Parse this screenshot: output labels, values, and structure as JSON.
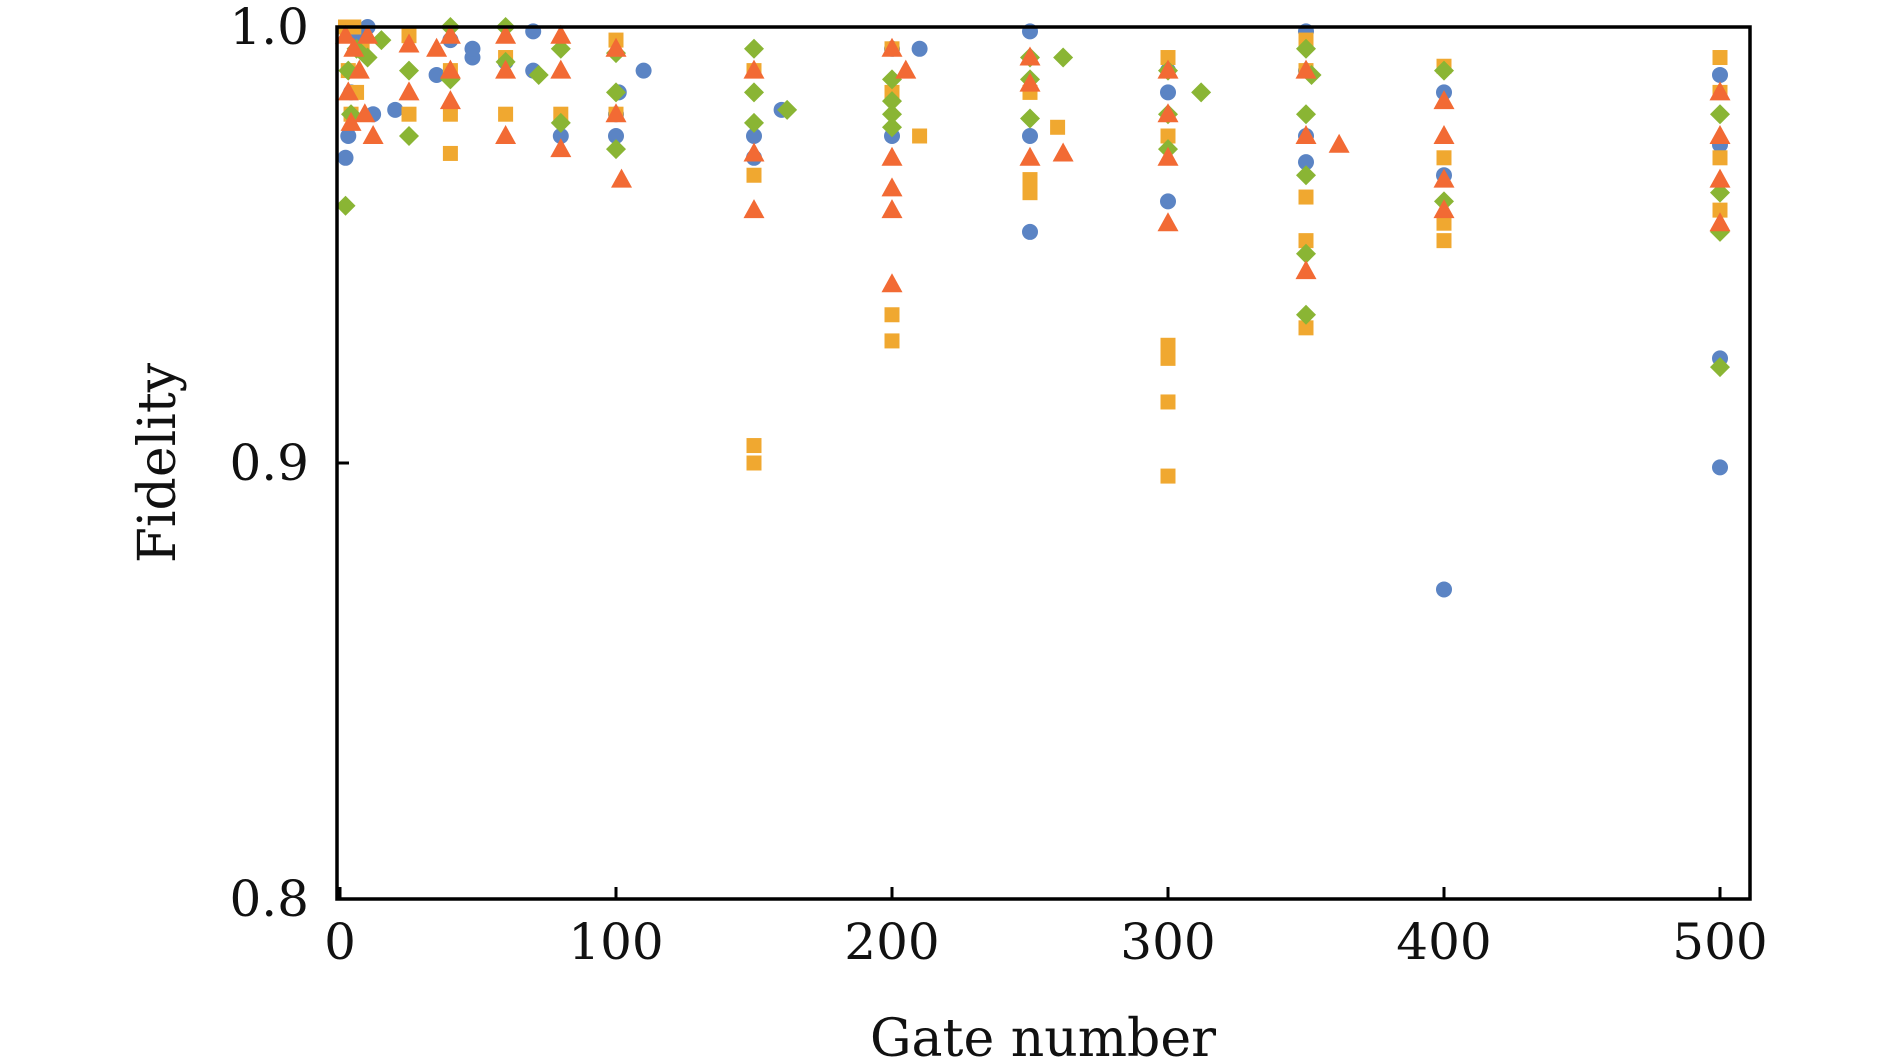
{
  "colors": {
    "series_circle": "#5b84c4",
    "series_square": "#f0a830",
    "series_diamond": "#8ab534",
    "series_triangle": "#f26a34"
  },
  "chart_data": {
    "type": "scatter",
    "title": "",
    "xlabel": "Gate number",
    "ylabel": "Fidelity",
    "xlim": [
      0,
      510
    ],
    "ylim": [
      0.8,
      1.0
    ],
    "grid": false,
    "legend": "none",
    "x_ticks": [
      {
        "value": 0,
        "label": "0"
      },
      {
        "value": 100,
        "label": "100"
      },
      {
        "value": 200,
        "label": "200"
      },
      {
        "value": 300,
        "label": "300"
      },
      {
        "value": 400,
        "label": "400"
      },
      {
        "value": 500,
        "label": "500"
      }
    ],
    "y_ticks": [
      {
        "value": 0.8,
        "label": "0.8"
      },
      {
        "value": 0.9,
        "label": "0.9"
      },
      {
        "value": 1.0,
        "label": "1.0"
      }
    ],
    "series": [
      {
        "marker": "circle",
        "color": "#5b84c4",
        "points": [
          [
            2,
            0.97
          ],
          [
            3,
            0.975
          ],
          [
            4,
            0.985
          ],
          [
            5,
            0.998
          ],
          [
            8,
            0.999
          ],
          [
            10,
            1.0
          ],
          [
            12,
            0.98
          ],
          [
            20,
            0.981
          ],
          [
            35,
            0.989
          ],
          [
            40,
            0.997
          ],
          [
            48,
            0.993
          ],
          [
            48,
            0.995
          ],
          [
            60,
            0.992
          ],
          [
            70,
            0.999
          ],
          [
            70,
            0.99
          ],
          [
            80,
            0.975
          ],
          [
            100,
            0.98
          ],
          [
            100,
            0.975
          ],
          [
            101,
            0.985
          ],
          [
            110,
            0.99
          ],
          [
            150,
            0.97
          ],
          [
            150,
            0.975
          ],
          [
            160,
            0.981
          ],
          [
            200,
            0.995
          ],
          [
            200,
            0.975
          ],
          [
            210,
            0.995
          ],
          [
            250,
            0.999
          ],
          [
            250,
            0.975
          ],
          [
            250,
            0.953
          ],
          [
            300,
            0.99
          ],
          [
            300,
            0.985
          ],
          [
            300,
            0.96
          ],
          [
            350,
            0.999
          ],
          [
            350,
            0.99
          ],
          [
            350,
            0.975
          ],
          [
            350,
            0.969
          ],
          [
            400,
            0.985
          ],
          [
            400,
            0.966
          ],
          [
            400,
            0.871
          ],
          [
            500,
            0.989
          ],
          [
            500,
            0.973
          ],
          [
            500,
            0.924
          ],
          [
            500,
            0.899
          ]
        ]
      },
      {
        "marker": "square",
        "color": "#f0a830",
        "points": [
          [
            2,
            1.0
          ],
          [
            3,
            0.99
          ],
          [
            4,
            0.98
          ],
          [
            5,
            1.0
          ],
          [
            6,
            0.985
          ],
          [
            8,
            0.995
          ],
          [
            25,
            0.998
          ],
          [
            25,
            0.98
          ],
          [
            40,
            0.98
          ],
          [
            40,
            0.971
          ],
          [
            40,
            0.99
          ],
          [
            60,
            0.993
          ],
          [
            60,
            0.98
          ],
          [
            80,
            0.98
          ],
          [
            100,
            0.997
          ],
          [
            100,
            0.98
          ],
          [
            150,
            0.99
          ],
          [
            150,
            0.966
          ],
          [
            150,
            0.904
          ],
          [
            150,
            0.9
          ],
          [
            200,
            0.995
          ],
          [
            200,
            0.985
          ],
          [
            200,
            0.934
          ],
          [
            200,
            0.928
          ],
          [
            210,
            0.975
          ],
          [
            250,
            0.985
          ],
          [
            250,
            0.965
          ],
          [
            250,
            0.962
          ],
          [
            260,
            0.977
          ],
          [
            300,
            0.993
          ],
          [
            300,
            0.975
          ],
          [
            300,
            0.927
          ],
          [
            300,
            0.924
          ],
          [
            300,
            0.914
          ],
          [
            300,
            0.897
          ],
          [
            350,
            0.997
          ],
          [
            350,
            0.99
          ],
          [
            350,
            0.961
          ],
          [
            350,
            0.951
          ],
          [
            350,
            0.931
          ],
          [
            400,
            0.991
          ],
          [
            400,
            0.97
          ],
          [
            400,
            0.955
          ],
          [
            400,
            0.951
          ],
          [
            500,
            0.993
          ],
          [
            500,
            0.985
          ],
          [
            500,
            0.97
          ],
          [
            500,
            0.958
          ]
        ]
      },
      {
        "marker": "diamond",
        "color": "#8ab534",
        "points": [
          [
            2,
            0.959
          ],
          [
            3,
            0.99
          ],
          [
            4,
            0.98
          ],
          [
            6,
            0.995
          ],
          [
            10,
            0.993
          ],
          [
            15,
            0.997
          ],
          [
            25,
            0.99
          ],
          [
            25,
            0.975
          ],
          [
            40,
            1.0
          ],
          [
            40,
            0.988
          ],
          [
            60,
            1.0
          ],
          [
            60,
            0.992
          ],
          [
            72,
            0.989
          ],
          [
            80,
            0.995
          ],
          [
            80,
            0.978
          ],
          [
            100,
            0.994
          ],
          [
            100,
            0.985
          ],
          [
            100,
            0.972
          ],
          [
            150,
            0.995
          ],
          [
            150,
            0.985
          ],
          [
            150,
            0.978
          ],
          [
            162,
            0.981
          ],
          [
            200,
            0.988
          ],
          [
            200,
            0.983
          ],
          [
            200,
            0.98
          ],
          [
            200,
            0.977
          ],
          [
            250,
            0.993
          ],
          [
            250,
            0.988
          ],
          [
            250,
            0.979
          ],
          [
            262,
            0.993
          ],
          [
            300,
            0.99
          ],
          [
            300,
            0.98
          ],
          [
            300,
            0.972
          ],
          [
            312,
            0.985
          ],
          [
            350,
            0.995
          ],
          [
            350,
            0.98
          ],
          [
            350,
            0.966
          ],
          [
            350,
            0.948
          ],
          [
            350,
            0.934
          ],
          [
            352,
            0.989
          ],
          [
            400,
            0.99
          ],
          [
            400,
            0.96
          ],
          [
            500,
            0.98
          ],
          [
            500,
            0.962
          ],
          [
            500,
            0.953
          ],
          [
            500,
            0.922
          ]
        ]
      },
      {
        "marker": "triangle",
        "color": "#f26a34",
        "points": [
          [
            2,
            0.998
          ],
          [
            3,
            0.985
          ],
          [
            4,
            0.978
          ],
          [
            5,
            0.995
          ],
          [
            7,
            0.99
          ],
          [
            9,
            0.98
          ],
          [
            10,
            0.998
          ],
          [
            12,
            0.975
          ],
          [
            25,
            0.996
          ],
          [
            25,
            0.985
          ],
          [
            35,
            0.995
          ],
          [
            40,
            0.998
          ],
          [
            40,
            0.99
          ],
          [
            40,
            0.983
          ],
          [
            60,
            0.998
          ],
          [
            60,
            0.99
          ],
          [
            60,
            0.975
          ],
          [
            80,
            0.998
          ],
          [
            80,
            0.99
          ],
          [
            80,
            0.972
          ],
          [
            100,
            0.995
          ],
          [
            100,
            0.98
          ],
          [
            102,
            0.965
          ],
          [
            150,
            0.99
          ],
          [
            150,
            0.971
          ],
          [
            150,
            0.958
          ],
          [
            200,
            0.995
          ],
          [
            200,
            0.97
          ],
          [
            200,
            0.963
          ],
          [
            200,
            0.958
          ],
          [
            200,
            0.941
          ],
          [
            205,
            0.99
          ],
          [
            250,
            0.993
          ],
          [
            250,
            0.987
          ],
          [
            250,
            0.97
          ],
          [
            262,
            0.971
          ],
          [
            300,
            0.99
          ],
          [
            300,
            0.98
          ],
          [
            300,
            0.97
          ],
          [
            300,
            0.955
          ],
          [
            350,
            0.99
          ],
          [
            350,
            0.975
          ],
          [
            350,
            0.944
          ],
          [
            362,
            0.973
          ],
          [
            400,
            0.983
          ],
          [
            400,
            0.975
          ],
          [
            400,
            0.965
          ],
          [
            400,
            0.958
          ],
          [
            500,
            0.985
          ],
          [
            500,
            0.975
          ],
          [
            500,
            0.965
          ],
          [
            500,
            0.955
          ]
        ]
      }
    ]
  }
}
